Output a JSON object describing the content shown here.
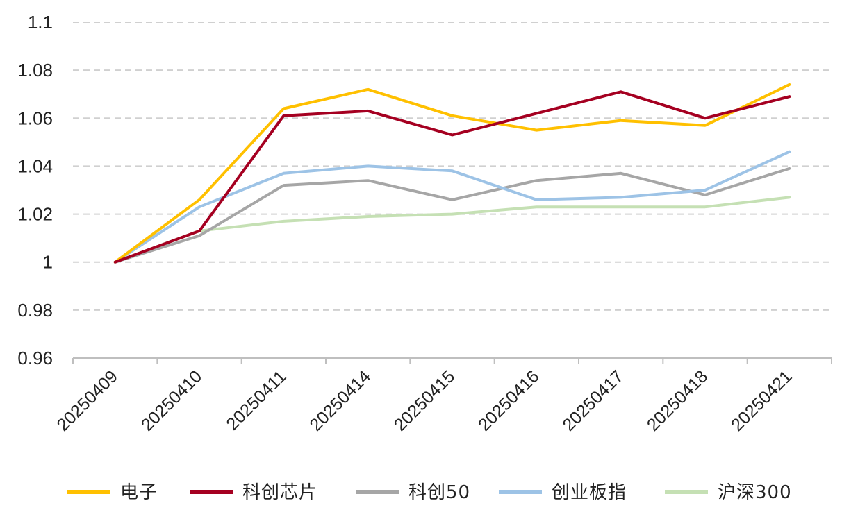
{
  "chart_data": {
    "type": "line",
    "title": "",
    "xlabel": "",
    "ylabel": "",
    "categories": [
      "20250409",
      "20250410",
      "20250411",
      "20250414",
      "20250415",
      "20250416",
      "20250417",
      "20250418",
      "20250421"
    ],
    "ylim": [
      0.96,
      1.1
    ],
    "yticks": [
      "0.96",
      "0.98",
      "1",
      "1.02",
      "1.04",
      "1.06",
      "1.08",
      "1.1"
    ],
    "grid": "horizontal dashed",
    "legend_position": "bottom",
    "series": [
      {
        "name": "电子",
        "color": "#FFC000",
        "values": [
          1.0,
          1.026,
          1.064,
          1.072,
          1.061,
          1.055,
          1.059,
          1.057,
          1.074
        ]
      },
      {
        "name": "科创芯片",
        "color": "#A50021",
        "values": [
          1.0,
          1.013,
          1.061,
          1.063,
          1.053,
          1.062,
          1.071,
          1.06,
          1.069
        ]
      },
      {
        "name": "科创50",
        "color": "#A6A6A6",
        "values": [
          1.0,
          1.011,
          1.032,
          1.034,
          1.026,
          1.034,
          1.037,
          1.028,
          1.039
        ]
      },
      {
        "name": "创业板指",
        "color": "#9DC3E6",
        "values": [
          1.0,
          1.023,
          1.037,
          1.04,
          1.038,
          1.026,
          1.027,
          1.03,
          1.046
        ]
      },
      {
        "name": "沪深300",
        "color": "#C5E0B4",
        "values": [
          1.0,
          1.013,
          1.017,
          1.019,
          1.02,
          1.023,
          1.023,
          1.023,
          1.027
        ]
      }
    ]
  }
}
